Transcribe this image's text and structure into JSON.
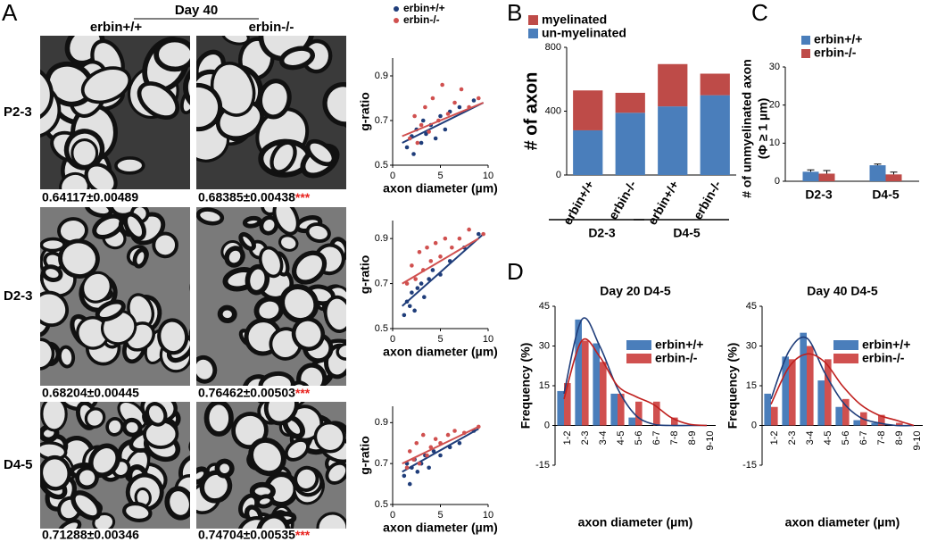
{
  "panel_labels": [
    "A",
    "B",
    "C",
    "D"
  ],
  "figure_a": {
    "header": "Day 40",
    "columns": [
      "erbin+/+",
      "erbin-/-"
    ],
    "rows": [
      {
        "label": "P2-3",
        "values": [
          "0.64117±0.00489",
          "0.68385±0.00438"
        ],
        "significance": "***"
      },
      {
        "label": "D2-3",
        "values": [
          "0.68204±0.00445",
          "0.76462±0.00503"
        ],
        "significance": "***"
      },
      {
        "label": "D4-5",
        "values": [
          "0.71288±0.00346",
          "0.74704±0.00535"
        ],
        "significance": "***"
      }
    ]
  },
  "chart_data": [
    {
      "type": "scatter",
      "xlabel": "axon diameter (µm)",
      "ylabel": "g-ratio",
      "xlim": [
        0,
        10
      ],
      "ylim": [
        0.5,
        0.98
      ],
      "xticks": [
        0,
        5,
        10
      ],
      "yticks": [
        0.5,
        0.7,
        0.9
      ],
      "series": [
        {
          "name": "erbin+/+",
          "color": "#1f3d7a",
          "x": [
            1.5,
            2,
            2.2,
            2.5,
            3,
            3.2,
            3.5,
            4,
            4.5,
            5,
            5.5,
            6,
            7,
            8.5
          ],
          "y": [
            0.58,
            0.63,
            0.55,
            0.66,
            0.6,
            0.7,
            0.64,
            0.68,
            0.62,
            0.72,
            0.66,
            0.74,
            0.76,
            0.79
          ],
          "trend_x": [
            1,
            9.5
          ],
          "trend_y": [
            0.6,
            0.78
          ]
        },
        {
          "name": "erbin-/-",
          "color": "#d0504f",
          "x": [
            1.8,
            2.3,
            2.6,
            3,
            3.4,
            3.8,
            4.2,
            4.8,
            5.2,
            5.8,
            6.5,
            7.2,
            8,
            9
          ],
          "y": [
            0.62,
            0.72,
            0.6,
            0.68,
            0.76,
            0.65,
            0.8,
            0.7,
            0.86,
            0.73,
            0.78,
            0.84,
            0.76,
            0.8
          ],
          "trend_x": [
            1,
            9.5
          ],
          "trend_y": [
            0.63,
            0.78
          ]
        }
      ]
    },
    {
      "type": "scatter",
      "xlabel": "axon diameter (µm)",
      "ylabel": "g-ratio",
      "xlim": [
        0,
        10
      ],
      "ylim": [
        0.5,
        0.98
      ],
      "xticks": [
        0,
        5,
        10
      ],
      "yticks": [
        0.5,
        0.7,
        0.9
      ],
      "series": [
        {
          "color": "#1f3d7a",
          "x": [
            1.2,
            1.5,
            1.8,
            2,
            2.3,
            2.6,
            3,
            3.3,
            3.8,
            4.2,
            5,
            6,
            7.5,
            9
          ],
          "y": [
            0.56,
            0.62,
            0.6,
            0.66,
            0.58,
            0.68,
            0.7,
            0.64,
            0.72,
            0.76,
            0.74,
            0.8,
            0.86,
            0.92
          ],
          "trend_x": [
            1,
            9.5
          ],
          "trend_y": [
            0.6,
            0.92
          ]
        },
        {
          "color": "#d0504f",
          "x": [
            1.5,
            2,
            2.4,
            2.8,
            3.2,
            3.6,
            4,
            4.5,
            5,
            5.5,
            6.2,
            7,
            8,
            9.5
          ],
          "y": [
            0.7,
            0.78,
            0.72,
            0.84,
            0.76,
            0.86,
            0.8,
            0.88,
            0.82,
            0.9,
            0.86,
            0.9,
            0.94,
            0.92
          ],
          "trend_x": [
            1,
            9
          ],
          "trend_y": [
            0.7,
            0.9
          ]
        }
      ]
    },
    {
      "type": "scatter",
      "xlabel": "axon diameter (µm)",
      "ylabel": "g-ratio",
      "xlim": [
        0,
        10
      ],
      "ylim": [
        0.5,
        0.98
      ],
      "xticks": [
        0,
        5,
        10
      ],
      "yticks": [
        0.5,
        0.7,
        0.9
      ],
      "series": [
        {
          "color": "#1f3d7a",
          "x": [
            1.2,
            1.5,
            1.8,
            2,
            2.3,
            2.6,
            3,
            3.4,
            3.8,
            4.3,
            5,
            6,
            7,
            8.5
          ],
          "y": [
            0.64,
            0.7,
            0.6,
            0.68,
            0.72,
            0.66,
            0.7,
            0.74,
            0.68,
            0.76,
            0.74,
            0.78,
            0.8,
            0.86
          ],
          "trend_x": [
            1,
            9
          ],
          "trend_y": [
            0.66,
            0.87
          ]
        },
        {
          "color": "#d0504f",
          "x": [
            1.5,
            1.8,
            2.2,
            2.5,
            2.8,
            3.2,
            3.6,
            4,
            4.5,
            5,
            5.8,
            6.5,
            7.5,
            9
          ],
          "y": [
            0.68,
            0.76,
            0.72,
            0.8,
            0.7,
            0.84,
            0.74,
            0.78,
            0.82,
            0.8,
            0.84,
            0.86,
            0.85,
            0.88
          ],
          "trend_x": [
            1,
            9
          ],
          "trend_y": [
            0.7,
            0.88
          ]
        }
      ]
    },
    {
      "type": "stacked_bar",
      "ylabel": "# of axon",
      "categories": [
        "erbin+/+",
        "erbin-/-",
        "erbin+/+",
        "erbin-/-"
      ],
      "group_labels": [
        "D2-3",
        "D4-5"
      ],
      "ylim": [
        0,
        800
      ],
      "yticks": [
        0,
        400,
        800
      ],
      "series": [
        {
          "name": "myelinated",
          "color": "#be4b48",
          "values": [
            250,
            125,
            265,
            135
          ]
        },
        {
          "name": "un-myelinated",
          "color": "#4a7ebb",
          "values": [
            280,
            390,
            430,
            500
          ]
        }
      ]
    },
    {
      "type": "grouped_bar",
      "ylabel": [
        "# of unmyelinated axon",
        "(Φ ≥ 1 µm)"
      ],
      "categories": [
        "D2-3",
        "D4-5"
      ],
      "ylim": [
        0,
        30
      ],
      "yticks": [
        0,
        10,
        20,
        30
      ],
      "series": [
        {
          "name": "erbin+/+",
          "color": "#4a7ebb",
          "values": [
            2.5,
            4.2
          ],
          "errors": [
            0.5,
            0.3
          ]
        },
        {
          "name": "erbin-/-",
          "color": "#be4b48",
          "values": [
            2.0,
            1.8
          ],
          "errors": [
            0.8,
            0.6
          ]
        }
      ]
    },
    {
      "type": "histogram_fit",
      "title": "Day 20 D4-5",
      "xlabel": "axon diameter (µm)",
      "ylabel": "Frequency (%)",
      "categories": [
        "1-2",
        "2-3",
        "3-4",
        "4-5",
        "5-6",
        "6-7",
        "7-8",
        "8-9",
        "9-10"
      ],
      "ylim": [
        -15,
        45
      ],
      "yticks": [
        -15,
        0,
        15,
        30,
        45
      ],
      "series": [
        {
          "name": "erbin+/+",
          "color": "#4a7ebb",
          "line_color": "#1f3d7a",
          "values": [
            13,
            40,
            31,
            12,
            3,
            0,
            0,
            0,
            0
          ],
          "fit": [
            12,
            40,
            30,
            14,
            4,
            0.5,
            0,
            0,
            0
          ]
        },
        {
          "name": "erbin-/-",
          "color": "#d0504f",
          "line_color": "#c0201e",
          "values": [
            16,
            32,
            24,
            12,
            9,
            9,
            3,
            0,
            0
          ],
          "fit": [
            10,
            32,
            26,
            15,
            11,
            8,
            3,
            0.5,
            0
          ]
        }
      ]
    },
    {
      "type": "histogram_fit",
      "title": "Day 40 D4-5",
      "xlabel": "axon diameter (µm)",
      "ylabel": "Frequency (%)",
      "categories": [
        "1-2",
        "2-3",
        "3-4",
        "4-5",
        "5-6",
        "6-7",
        "7-8",
        "8-9",
        "9-10"
      ],
      "ylim": [
        -15,
        45
      ],
      "yticks": [
        -15,
        0,
        15,
        30,
        45
      ],
      "series": [
        {
          "name": "erbin+/+",
          "color": "#4a7ebb",
          "line_color": "#1f3d7a",
          "values": [
            12,
            26,
            35,
            17,
            7,
            2,
            1,
            0,
            0
          ],
          "fit": [
            10,
            28,
            33,
            20,
            9,
            3,
            1,
            0,
            0
          ]
        },
        {
          "name": "erbin-/-",
          "color": "#d0504f",
          "line_color": "#c0201e",
          "values": [
            7,
            25,
            30,
            25,
            10,
            5,
            4,
            1,
            0
          ],
          "fit": [
            8,
            22,
            27,
            24,
            15,
            8,
            4,
            2,
            0
          ]
        }
      ]
    }
  ]
}
